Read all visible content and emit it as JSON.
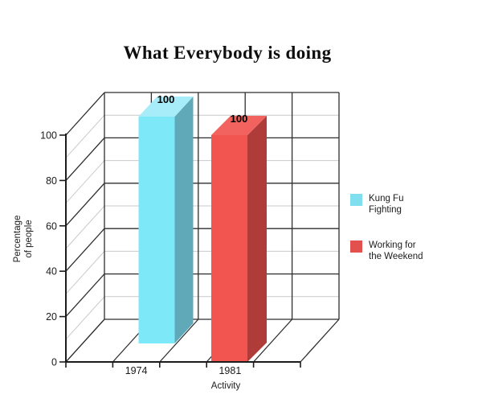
{
  "page": {
    "background": "#ffffff"
  },
  "chart_data": {
    "type": "bar",
    "projection": "3d",
    "title": "What Everybody is doing",
    "xlabel": "Activity",
    "ylabel": "Percentage of people",
    "ylabel_lines": [
      "Percentage",
      "of people"
    ],
    "ylim": [
      0,
      100
    ],
    "ytick_step": 20,
    "ytick_labels": [
      "0",
      "20",
      "40",
      "60",
      "80",
      "100"
    ],
    "grid": "major-dark-minor-light",
    "legend_position": "right",
    "categories": [
      "1974",
      "1981"
    ],
    "series": [
      {
        "name": "Kung Fu Fighting",
        "legend_lines": [
          "Kung Fu",
          "Fighting"
        ],
        "category": "1974",
        "value": 100,
        "data_label": "100",
        "colors": {
          "front": "#7de8f8",
          "side": "#5fa9b8",
          "top": "#a6edf9",
          "legend": "#7fdfee"
        }
      },
      {
        "name": "Working for the Weekend",
        "legend_lines": [
          "Working for",
          "the Weekend"
        ],
        "category": "1981",
        "value": 100,
        "data_label": "100",
        "colors": {
          "front": "#f25450",
          "side": "#b03c3a",
          "top": "#f2625e",
          "legend": "#e2514e"
        }
      }
    ]
  }
}
